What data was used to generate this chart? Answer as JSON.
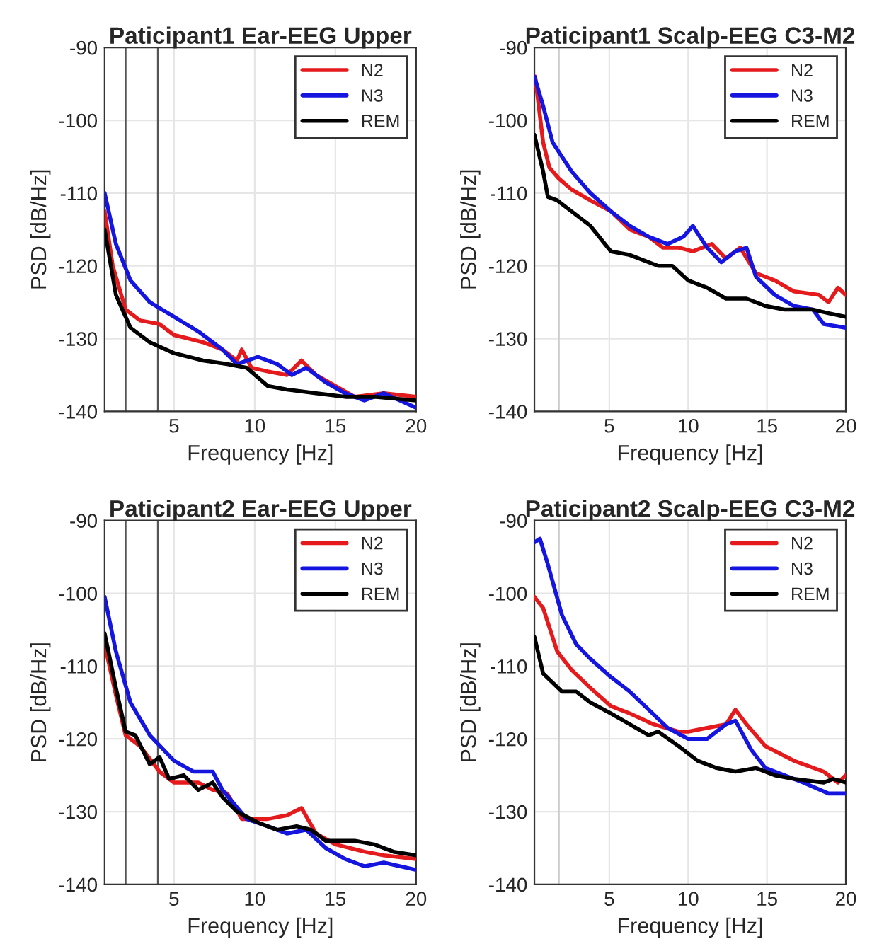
{
  "chart_data": [
    {
      "type": "line",
      "title": "Paticipant1 Ear-EEG Upper",
      "xlabel": "Frequency [Hz]",
      "ylabel": "PSD [dB/Hz]",
      "xlim": [
        0.7,
        20
      ],
      "ylim": [
        -140,
        -90
      ],
      "xticks": [
        5,
        10,
        15,
        20
      ],
      "yticks": [
        -140,
        -130,
        -120,
        -110,
        -100,
        -90
      ],
      "grid": true,
      "legend": "top right",
      "ref_lines": [
        {
          "axis": "x",
          "value": 2,
          "color": "#555555"
        },
        {
          "axis": "x",
          "value": 4,
          "color": "#555555"
        }
      ],
      "series": [
        {
          "name": "N2",
          "color": "#e41a1c",
          "x": [
            0.7,
            1.2,
            2.0,
            2.9,
            4.1,
            5,
            6.8,
            8,
            8.9,
            9.2,
            9.8,
            10.8,
            12,
            12.9,
            13.8,
            15,
            16.2,
            18,
            20
          ],
          "values": [
            -112.5,
            -120,
            -126,
            -127.5,
            -128,
            -129.5,
            -130.5,
            -131.5,
            -133,
            -131.5,
            -134,
            -134.5,
            -135,
            -133,
            -135,
            -136.5,
            -138,
            -137.5,
            -138
          ]
        },
        {
          "name": "N3",
          "color": "#1515e0",
          "x": [
            0.7,
            1.4,
            2.3,
            3.5,
            5,
            6.5,
            8,
            8.9,
            10.2,
            11.4,
            12.3,
            13.2,
            14.4,
            15.6,
            16.8,
            18,
            20
          ],
          "values": [
            -110,
            -117,
            -122,
            -125,
            -127,
            -129,
            -131.5,
            -133.5,
            -132.5,
            -133.5,
            -135,
            -134,
            -136,
            -137.5,
            -138.5,
            -137.5,
            -139.5
          ]
        },
        {
          "name": "REM",
          "color": "#000000",
          "x": [
            0.7,
            1.4,
            2.3,
            3.5,
            5,
            6.8,
            8.3,
            9.5,
            10.8,
            12,
            13.8,
            15.6,
            17.4,
            20
          ],
          "values": [
            -115,
            -124,
            -128.5,
            -130.5,
            -132,
            -133,
            -133.5,
            -134,
            -136.5,
            -137,
            -137.5,
            -138,
            -138,
            -138.5
          ]
        }
      ]
    },
    {
      "type": "line",
      "title": "Paticipant1 Scalp-EEG C3-M2",
      "xlabel": "Frequency [Hz]",
      "ylabel": "PSD [dB/Hz]",
      "xlim": [
        0.25,
        20
      ],
      "ylim": [
        -140,
        -90
      ],
      "xticks": [
        5,
        10,
        15,
        20
      ],
      "yticks": [
        -140,
        -130,
        -120,
        -110,
        -100,
        -90
      ],
      "grid": true,
      "legend": "top right",
      "ref_lines": [
        {
          "axis": "x",
          "value": 1.8,
          "color": "#cccccc"
        }
      ],
      "series": [
        {
          "name": "N2",
          "color": "#e41a1c",
          "x": [
            0.3,
            0.8,
            1.2,
            1.8,
            2.6,
            3.8,
            5.1,
            6.3,
            7.5,
            8.4,
            9.4,
            10.3,
            11.5,
            12.4,
            13.3,
            14.3,
            15.5,
            16.7,
            18.3,
            18.9,
            19.5,
            20
          ],
          "values": [
            -94,
            -103,
            -106.5,
            -108,
            -109.5,
            -111,
            -112.5,
            -115,
            -116,
            -117.5,
            -117.5,
            -118,
            -117,
            -119,
            -117.5,
            -121,
            -122,
            -123.5,
            -124,
            -125,
            -123,
            -124
          ]
        },
        {
          "name": "N3",
          "color": "#1515e0",
          "x": [
            0.25,
            0.8,
            1.4,
            2.6,
            3.8,
            5.1,
            6.3,
            7.5,
            8.7,
            9.7,
            10.3,
            11.2,
            12.1,
            13,
            13.7,
            14.3,
            15.5,
            16.7,
            17.9,
            18.6,
            20
          ],
          "values": [
            -94,
            -98,
            -103,
            -107,
            -110,
            -112.5,
            -114.5,
            -116,
            -117,
            -116,
            -114.5,
            -117.5,
            -119.5,
            -118,
            -117.5,
            -121.5,
            -124,
            -125.5,
            -126,
            -128,
            -128.5
          ]
        },
        {
          "name": "REM",
          "color": "#000000",
          "x": [
            0.25,
            0.8,
            1.1,
            1.7,
            2.6,
            3.8,
            5.1,
            6.3,
            8.1,
            9,
            10,
            11.2,
            12.4,
            13.7,
            14.9,
            16.1,
            17.9,
            18.9,
            20
          ],
          "values": [
            -102,
            -107,
            -110.5,
            -111,
            -112.5,
            -114.5,
            -118,
            -118.5,
            -120,
            -120,
            -122,
            -123,
            -124.5,
            -124.5,
            -125.5,
            -126,
            -126,
            -126.5,
            -127
          ]
        }
      ]
    },
    {
      "type": "line",
      "title": "Paticipant2 Ear-EEG Upper",
      "xlabel": "Frequency [Hz]",
      "ylabel": "PSD [dB/Hz]",
      "xlim": [
        0.7,
        20
      ],
      "ylim": [
        -140,
        -90
      ],
      "xticks": [
        5,
        10,
        15,
        20
      ],
      "yticks": [
        -140,
        -130,
        -120,
        -110,
        -100,
        -90
      ],
      "grid": true,
      "legend": "top right",
      "ref_lines": [
        {
          "axis": "x",
          "value": 2,
          "color": "#555555"
        },
        {
          "axis": "x",
          "value": 4,
          "color": "#555555"
        }
      ],
      "series": [
        {
          "name": "N2",
          "color": "#e41a1c",
          "x": [
            0.7,
            1.4,
            2.0,
            2.9,
            4.1,
            5,
            6.5,
            7.4,
            8.3,
            9.2,
            10.8,
            12,
            12.9,
            13.8,
            15,
            16.8,
            18,
            20
          ],
          "values": [
            -107,
            -114,
            -119.5,
            -121,
            -124.5,
            -126,
            -126,
            -127,
            -127.5,
            -131,
            -131,
            -130.5,
            -129.5,
            -133,
            -134.5,
            -135.5,
            -136,
            -136.5
          ]
        },
        {
          "name": "N3",
          "color": "#1515e0",
          "x": [
            0.7,
            1.4,
            2.3,
            3.5,
            5,
            6.2,
            7.4,
            8,
            9.5,
            10.8,
            12,
            13.2,
            14.4,
            15.6,
            16.8,
            18,
            20
          ],
          "values": [
            -100.5,
            -108,
            -115,
            -119.5,
            -123,
            -124.5,
            -124.5,
            -127,
            -131,
            -132,
            -133,
            -132.5,
            -135,
            -136.5,
            -137.5,
            -137,
            -138
          ]
        },
        {
          "name": "REM",
          "color": "#000000",
          "x": [
            0.7,
            1.4,
            2.0,
            2.6,
            3.5,
            4.1,
            4.7,
            5.6,
            6.5,
            7.4,
            8,
            8.9,
            10.2,
            11.4,
            12.6,
            13.5,
            14.4,
            16.2,
            17.4,
            18.6,
            20
          ],
          "values": [
            -105.5,
            -113,
            -119,
            -119.5,
            -123.5,
            -122.5,
            -125.5,
            -125,
            -127,
            -126,
            -128,
            -130,
            -131.5,
            -132.5,
            -132,
            -132.5,
            -134,
            -134,
            -134.5,
            -135.5,
            -136
          ]
        }
      ]
    },
    {
      "type": "line",
      "title": "Paticipant2 Scalp-EEG C3-M2",
      "xlabel": "Frequency [Hz]",
      "ylabel": "PSD [dB/Hz]",
      "xlim": [
        0.25,
        20
      ],
      "ylim": [
        -140,
        -90
      ],
      "xticks": [
        5,
        10,
        15,
        20
      ],
      "yticks": [
        -140,
        -130,
        -120,
        -110,
        -100,
        -90
      ],
      "grid": true,
      "legend": "top right",
      "ref_lines": [
        {
          "axis": "x",
          "value": 1.8,
          "color": "#cccccc"
        }
      ],
      "series": [
        {
          "name": "N2",
          "color": "#e41a1c",
          "x": [
            0.25,
            0.8,
            1.7,
            2.6,
            3.8,
            5.1,
            6.3,
            7.8,
            9.4,
            10,
            11.2,
            12.4,
            13,
            13.7,
            14.9,
            16.7,
            18.6,
            19.5,
            20
          ],
          "values": [
            -100.5,
            -102,
            -108,
            -110.5,
            -113,
            -115.5,
            -116.5,
            -118,
            -119,
            -119,
            -118.5,
            -118,
            -116,
            -118,
            -121,
            -123,
            -124.5,
            -126,
            -125
          ]
        },
        {
          "name": "N3",
          "color": "#1515e0",
          "x": [
            0.25,
            0.6,
            1.1,
            2,
            2.9,
            3.8,
            5.1,
            6.3,
            7.5,
            8.7,
            10,
            11.2,
            12.4,
            13,
            14,
            14.9,
            16.1,
            17.3,
            18.9,
            20
          ],
          "values": [
            -93,
            -92.5,
            -96,
            -103,
            -107,
            -109,
            -111.5,
            -113.5,
            -116,
            -118.5,
            -120,
            -120,
            -118,
            -117.5,
            -121.5,
            -124,
            -125,
            -126,
            -127.5,
            -127.5
          ]
        },
        {
          "name": "REM",
          "color": "#000000",
          "x": [
            0.25,
            0.8,
            2,
            2.9,
            3.8,
            5.1,
            6.3,
            7.5,
            8.1,
            9.4,
            10.6,
            11.8,
            13,
            14.3,
            15.5,
            16.7,
            18.6,
            19.2,
            20
          ],
          "values": [
            -106,
            -111,
            -113.5,
            -113.5,
            -115,
            -116.5,
            -118,
            -119.5,
            -119,
            -121,
            -123,
            -124,
            -124.5,
            -124,
            -125,
            -125.5,
            -126,
            -125.5,
            -126
          ]
        }
      ]
    }
  ]
}
